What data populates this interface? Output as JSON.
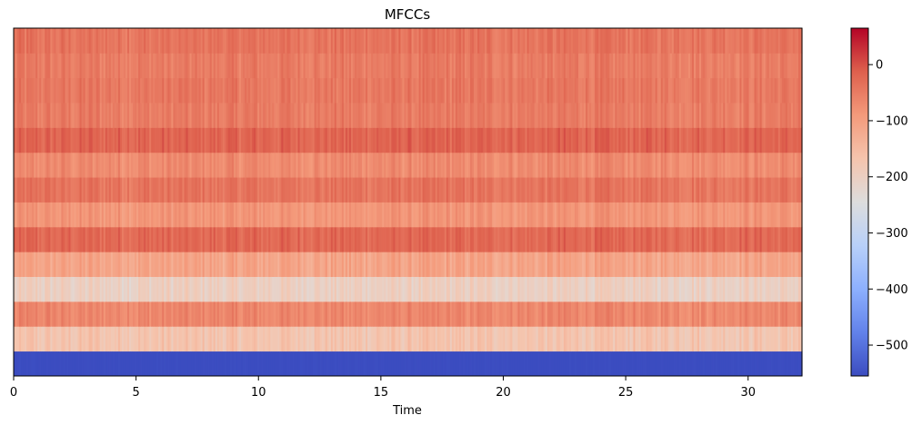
{
  "chart_data": {
    "type": "heatmap",
    "title": "MFCCs",
    "xlabel": "Time",
    "ylabel": "",
    "xlim": [
      0,
      32.2
    ],
    "x_ticks": [
      0,
      5,
      10,
      15,
      20,
      25,
      30
    ],
    "colormap": "coolwarm",
    "colorbar": {
      "range": [
        -555,
        65
      ],
      "ticks": [
        0,
        -100,
        -200,
        -300,
        -400,
        -500
      ],
      "tick_labels": [
        "0",
        "−100",
        "−200",
        "−300",
        "−400",
        "−500"
      ]
    },
    "row_levels": [
      -555,
      -170,
      -65,
      -200,
      -110,
      -25,
      -85,
      -40,
      -70,
      -20,
      -50,
      -45,
      -50,
      -40
    ]
  }
}
